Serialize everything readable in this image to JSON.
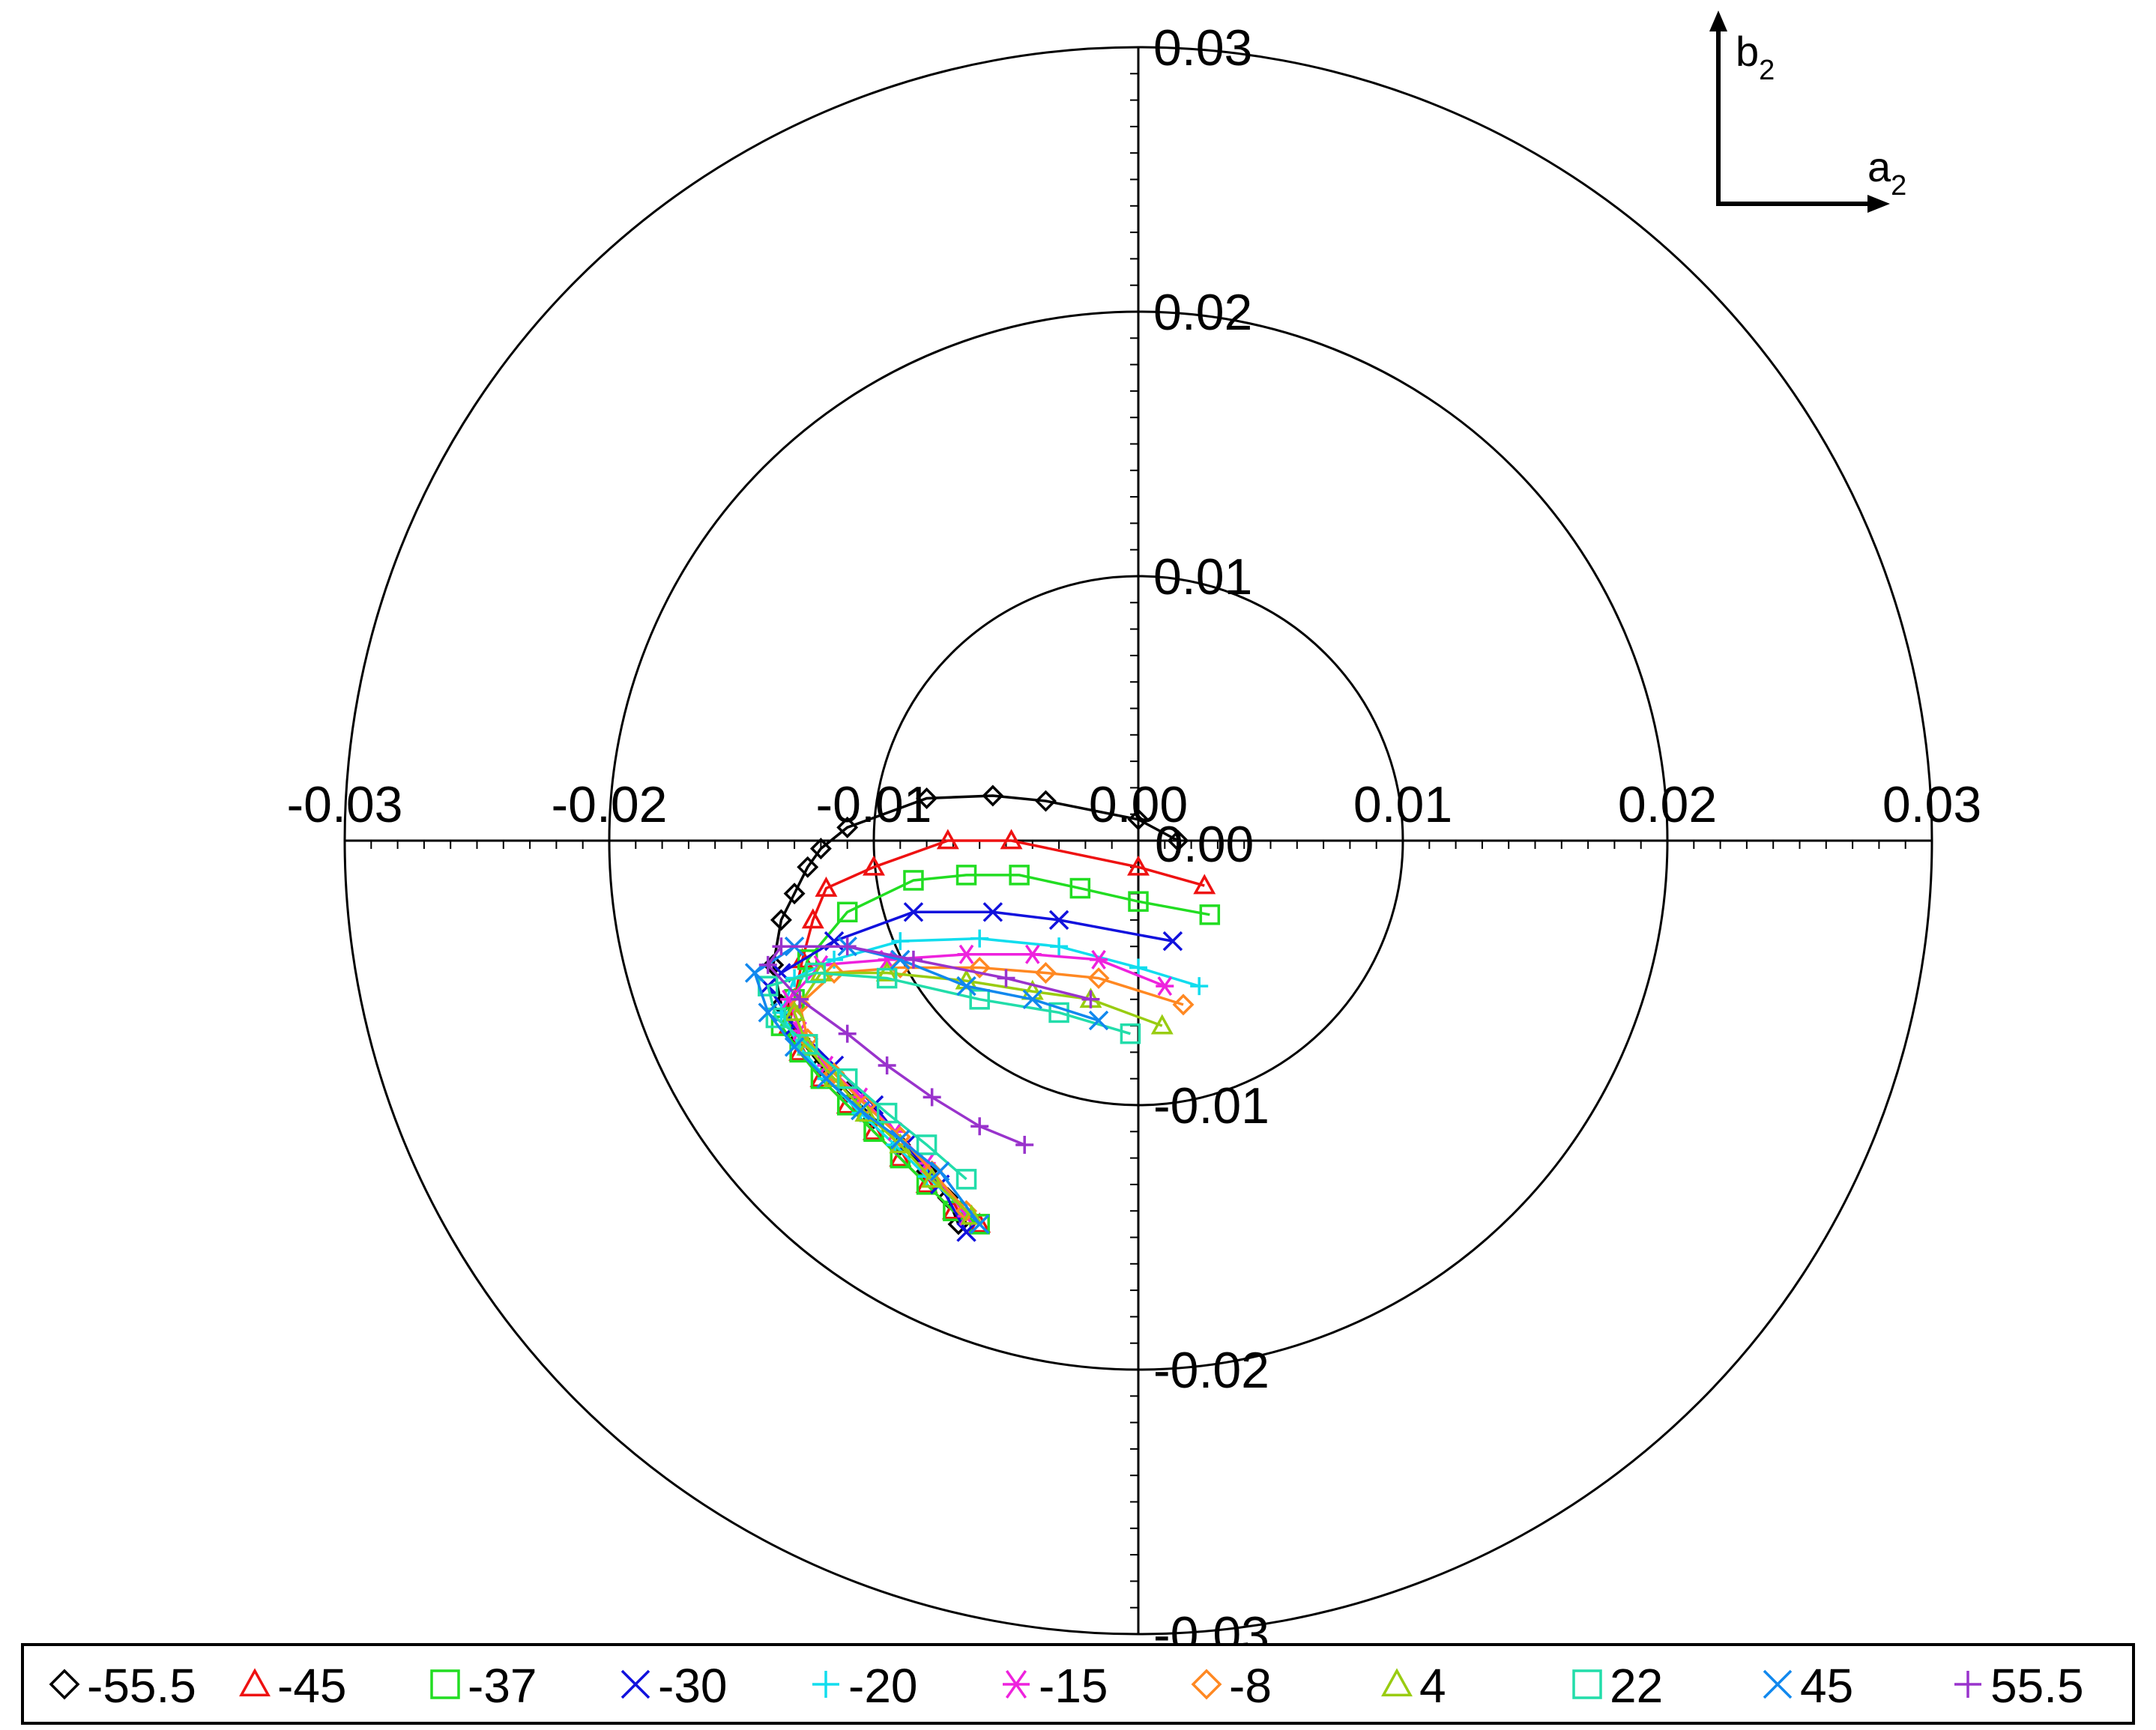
{
  "chart_data": {
    "type": "scatter",
    "subtype": "polar-harmonic-locus",
    "title": "",
    "xlabel": "",
    "ylabel": "",
    "xlim": [
      -0.03,
      0.03
    ],
    "ylim": [
      -0.03,
      0.03
    ],
    "rings": [
      0.01,
      0.02,
      0.03
    ],
    "x_ticks": [
      "-0.03",
      "-0.02",
      "-0.01",
      "0.00",
      "0.01",
      "0.02",
      "0.03"
    ],
    "x_tick_values": [
      -0.03,
      -0.02,
      -0.01,
      0.0,
      0.01,
      0.02,
      0.03
    ],
    "y_ticks": [
      "0.03",
      "0.02",
      "0.01",
      "0.00",
      "-0.01",
      "-0.02",
      "-0.03"
    ],
    "y_tick_values": [
      0.03,
      0.02,
      0.01,
      0.0,
      -0.01,
      -0.02,
      -0.03
    ],
    "grid": false,
    "legend_position": "bottom",
    "axis_inset": {
      "x_base": "a",
      "x_sub": "2",
      "y_base": "b",
      "y_sub": "2"
    },
    "series": [
      {
        "name": "-55.5",
        "marker": "diamond",
        "color": "#000000",
        "x": [
          0.0015,
          0.0,
          -0.0035,
          -0.0055,
          -0.008,
          -0.011,
          -0.012,
          -0.0125,
          -0.013,
          -0.0135,
          -0.0138,
          -0.0135,
          -0.0128,
          -0.012,
          -0.011,
          -0.01,
          -0.009,
          -0.008,
          -0.0072,
          -0.0068
        ],
        "y": [
          0.0,
          0.0008,
          0.0015,
          0.0017,
          0.0016,
          0.0005,
          -0.0003,
          -0.001,
          -0.002,
          -0.003,
          -0.0047,
          -0.0062,
          -0.0075,
          -0.0085,
          -0.0095,
          -0.0105,
          -0.0115,
          -0.0125,
          -0.0135,
          -0.0145
        ]
      },
      {
        "name": "-45",
        "marker": "triangle",
        "color": "#ee1111",
        "x": [
          0.0025,
          0.0,
          -0.0048,
          -0.0072,
          -0.01,
          -0.0118,
          -0.0123,
          -0.0127,
          -0.013,
          -0.0132,
          -0.0128,
          -0.012,
          -0.011,
          -0.01,
          -0.009,
          -0.008,
          -0.007,
          -0.006
        ],
        "y": [
          -0.0017,
          -0.001,
          0.0,
          0.0,
          -0.001,
          -0.0018,
          -0.003,
          -0.0045,
          -0.006,
          -0.007,
          -0.008,
          -0.009,
          -0.01,
          -0.011,
          -0.012,
          -0.013,
          -0.014,
          -0.0145
        ]
      },
      {
        "name": "-37",
        "marker": "square",
        "color": "#22dd22",
        "x": [
          0.0027,
          0.0,
          -0.0022,
          -0.0045,
          -0.0065,
          -0.0085,
          -0.011,
          -0.0125,
          -0.013,
          -0.0135,
          -0.0128,
          -0.012,
          -0.011,
          -0.01,
          -0.009,
          -0.008,
          -0.007,
          -0.006
        ],
        "y": [
          -0.0028,
          -0.0023,
          -0.0018,
          -0.0013,
          -0.0013,
          -0.0015,
          -0.0027,
          -0.0045,
          -0.006,
          -0.007,
          -0.008,
          -0.009,
          -0.01,
          -0.011,
          -0.012,
          -0.013,
          -0.014,
          -0.0145
        ]
      },
      {
        "name": "-30",
        "marker": "x",
        "color": "#1111dd",
        "x": [
          0.0013,
          -0.003,
          -0.0055,
          -0.0085,
          -0.0115,
          -0.0135,
          -0.014,
          -0.013,
          -0.0115,
          -0.01,
          -0.0088,
          -0.0075,
          -0.0065
        ],
        "y": [
          -0.0038,
          -0.003,
          -0.0027,
          -0.0027,
          -0.0038,
          -0.005,
          -0.0055,
          -0.007,
          -0.0085,
          -0.01,
          -0.0115,
          -0.013,
          -0.0148
        ]
      },
      {
        "name": "-20",
        "marker": "plus",
        "color": "#11ddee",
        "x": [
          0.0023,
          0.0,
          -0.003,
          -0.006,
          -0.009,
          -0.0115,
          -0.013,
          -0.0135,
          -0.0128,
          -0.0118,
          -0.0105,
          -0.0092,
          -0.008,
          -0.0065
        ],
        "y": [
          -0.0055,
          -0.0048,
          -0.004,
          -0.0037,
          -0.0038,
          -0.0045,
          -0.0052,
          -0.0065,
          -0.0078,
          -0.009,
          -0.0103,
          -0.0115,
          -0.0127,
          -0.014
        ]
      },
      {
        "name": "-15",
        "marker": "asterisk",
        "color": "#ee22dd",
        "x": [
          0.001,
          -0.0015,
          -0.004,
          -0.0065,
          -0.0095,
          -0.012,
          -0.0132,
          -0.0128,
          -0.0118,
          -0.0105,
          -0.0092,
          -0.008,
          -0.0065
        ],
        "y": [
          -0.0055,
          -0.0045,
          -0.0043,
          -0.0043,
          -0.0045,
          -0.0047,
          -0.006,
          -0.0072,
          -0.0085,
          -0.0097,
          -0.011,
          -0.0122,
          -0.0142
        ]
      },
      {
        "name": "-8",
        "marker": "diamond",
        "color": "#ff8822",
        "x": [
          0.0017,
          -0.0015,
          -0.0035,
          -0.006,
          -0.009,
          -0.0115,
          -0.0128,
          -0.0125,
          -0.0115,
          -0.0103,
          -0.009,
          -0.0078,
          -0.0065
        ],
        "y": [
          -0.0062,
          -0.0052,
          -0.005,
          -0.0048,
          -0.0048,
          -0.005,
          -0.0062,
          -0.0075,
          -0.0088,
          -0.01,
          -0.0112,
          -0.0125,
          -0.014
        ]
      },
      {
        "name": "4",
        "marker": "triangle",
        "color": "#99cc11",
        "x": [
          0.0009,
          -0.0018,
          -0.004,
          -0.0065,
          -0.0095,
          -0.012,
          -0.013,
          -0.0125,
          -0.0115,
          -0.0103,
          -0.009,
          -0.0078,
          -0.0063
        ],
        "y": [
          -0.007,
          -0.006,
          -0.0057,
          -0.0053,
          -0.005,
          -0.005,
          -0.0065,
          -0.0078,
          -0.009,
          -0.0103,
          -0.0115,
          -0.0128,
          -0.0142
        ]
      },
      {
        "name": "22",
        "marker": "square",
        "color": "#22ddaa",
        "x": [
          -0.0003,
          -0.003,
          -0.006,
          -0.0095,
          -0.0122,
          -0.014,
          -0.0137,
          -0.0125,
          -0.011,
          -0.0095,
          -0.008,
          -0.0065
        ],
        "y": [
          -0.0073,
          -0.0065,
          -0.006,
          -0.0052,
          -0.005,
          -0.0055,
          -0.0067,
          -0.0077,
          -0.009,
          -0.0103,
          -0.0115,
          -0.0128
        ]
      },
      {
        "name": "45",
        "marker": "x",
        "color": "#1188ee",
        "x": [
          -0.0015,
          -0.004,
          -0.0065,
          -0.009,
          -0.011,
          -0.013,
          -0.0145,
          -0.014,
          -0.013,
          -0.0118,
          -0.0105,
          -0.009,
          -0.0075,
          -0.006
        ],
        "y": [
          -0.0068,
          -0.006,
          -0.0055,
          -0.0045,
          -0.004,
          -0.004,
          -0.005,
          -0.0065,
          -0.0078,
          -0.009,
          -0.0102,
          -0.0113,
          -0.0125,
          -0.0145
        ]
      },
      {
        "name": "55.5",
        "marker": "plus",
        "color": "#9933cc",
        "x": [
          -0.0018,
          -0.005,
          -0.0085,
          -0.011,
          -0.0135,
          -0.014,
          -0.0128,
          -0.011,
          -0.0095,
          -0.0078,
          -0.006,
          -0.0043
        ],
        "y": [
          -0.006,
          -0.0052,
          -0.0045,
          -0.004,
          -0.004,
          -0.0047,
          -0.006,
          -0.0073,
          -0.0085,
          -0.0097,
          -0.0108,
          -0.0115
        ]
      }
    ]
  }
}
